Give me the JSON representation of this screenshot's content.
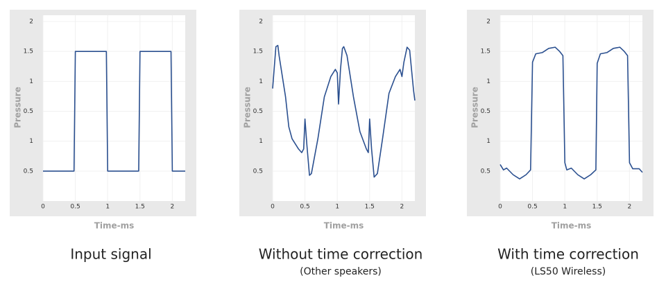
{
  "chart_data": [
    {
      "type": "line",
      "title": "Input signal",
      "xlabel": "Time-ms",
      "ylabel": "Pressure",
      "color": "#2a4f8f",
      "grid": true,
      "xlim": [
        0,
        2.2
      ],
      "xticks": [
        0,
        0.5,
        1,
        1.5,
        2
      ],
      "ylim": [
        -1,
        2
      ],
      "yticks": [
        2,
        1.5,
        1,
        0.5,
        {
          "value": 0,
          "label": "1"
        },
        {
          "value": -0.5,
          "label": "0.5"
        }
      ],
      "series": [
        {
          "name": "Input signal",
          "x": [
            0,
            0.48,
            0.5,
            0.98,
            1.0,
            1.48,
            1.5,
            1.98,
            2.0,
            2.2
          ],
          "values": [
            -0.5,
            -0.5,
            1.5,
            1.5,
            -0.5,
            -0.5,
            1.5,
            1.5,
            -0.5,
            -0.5
          ]
        }
      ]
    },
    {
      "type": "line",
      "title": "Without time correction",
      "subtitle": "(Other speakers)",
      "xlabel": "Time-ms",
      "ylabel": "Pressure",
      "color": "#2a4f8f",
      "grid": true,
      "xlim": [
        0,
        2.2
      ],
      "xticks": [
        0,
        0.5,
        1,
        1.5,
        2
      ],
      "ylim": [
        -1,
        2
      ],
      "yticks": [
        2,
        1.5,
        1,
        0.5,
        {
          "value": 0,
          "label": "1"
        },
        {
          "value": -0.5,
          "label": "0.5"
        }
      ],
      "series": [
        {
          "name": "Without time correction",
          "x": [
            0,
            0.05,
            0.08,
            0.1,
            0.2,
            0.25,
            0.3,
            0.4,
            0.45,
            0.48,
            0.5,
            0.53,
            0.57,
            0.6,
            0.7,
            0.8,
            0.9,
            0.97,
            1.0,
            1.02,
            1.05,
            1.08,
            1.1,
            1.15,
            1.25,
            1.35,
            1.45,
            1.48,
            1.5,
            1.53,
            1.57,
            1.62,
            1.7,
            1.8,
            1.9,
            1.97,
            2.0,
            2.03,
            2.08,
            2.12,
            2.18,
            2.2
          ],
          "values": [
            0.88,
            1.58,
            1.6,
            1.43,
            0.74,
            0.24,
            0.04,
            -0.13,
            -0.19,
            -0.13,
            0.37,
            -0.07,
            -0.57,
            -0.54,
            0.04,
            0.74,
            1.08,
            1.2,
            1.14,
            0.62,
            1.2,
            1.55,
            1.58,
            1.43,
            0.74,
            0.16,
            -0.13,
            -0.19,
            0.37,
            -0.13,
            -0.6,
            -0.54,
            0.04,
            0.8,
            1.08,
            1.2,
            1.08,
            1.32,
            1.57,
            1.52,
            0.85,
            0.68
          ]
        }
      ]
    },
    {
      "type": "line",
      "title": "With time correction",
      "subtitle": "(LS50 Wireless)",
      "xlabel": "Time-ms",
      "ylabel": "Pressure",
      "color": "#2a4f8f",
      "grid": true,
      "xlim": [
        0,
        2.2
      ],
      "xticks": [
        0,
        0.5,
        1,
        1.5,
        2
      ],
      "ylim": [
        -1,
        2
      ],
      "yticks": [
        2,
        1.5,
        1,
        0.5,
        {
          "value": 0,
          "label": "1"
        },
        {
          "value": -0.5,
          "label": "0.5"
        }
      ],
      "series": [
        {
          "name": "With time correction",
          "x": [
            0,
            0.05,
            0.1,
            0.2,
            0.3,
            0.4,
            0.47,
            0.5,
            0.55,
            0.65,
            0.75,
            0.85,
            0.92,
            0.97,
            1.0,
            1.03,
            1.1,
            1.2,
            1.3,
            1.4,
            1.48,
            1.5,
            1.55,
            1.65,
            1.75,
            1.85,
            1.92,
            1.97,
            2.0,
            2.05,
            2.15,
            2.2
          ],
          "values": [
            -0.39,
            -0.48,
            -0.45,
            -0.56,
            -0.63,
            -0.56,
            -0.48,
            1.32,
            1.46,
            1.48,
            1.55,
            1.57,
            1.5,
            1.43,
            -0.36,
            -0.48,
            -0.45,
            -0.56,
            -0.63,
            -0.56,
            -0.48,
            1.3,
            1.46,
            1.48,
            1.55,
            1.57,
            1.5,
            1.43,
            -0.36,
            -0.46,
            -0.46,
            -0.52
          ]
        }
      ]
    }
  ]
}
